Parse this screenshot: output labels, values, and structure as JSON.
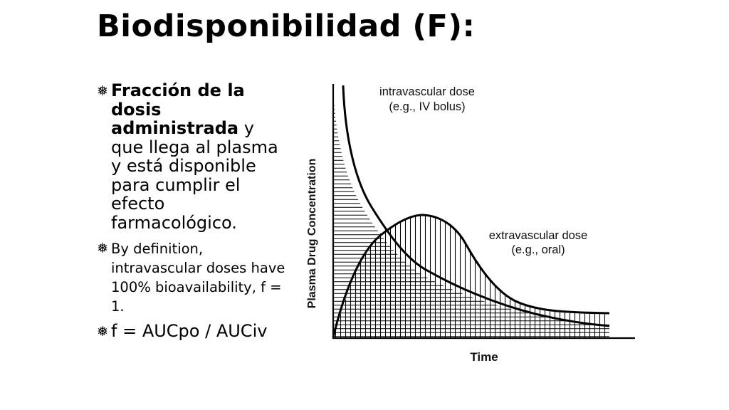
{
  "slide": {
    "title": "Biodisponibilidad (F):",
    "bullet_icon": "snowflake-bullet-icon",
    "bullets": [
      {
        "bold_text": "Fracción de la dosis administrada",
        "normal_text": " y que llega al plasma y está disponible para cumplir el efecto farmacológico."
      },
      {
        "text": "By definition, intravascular doses have 100% bioavailability, f = 1."
      },
      {
        "text": "f = AUCpo / AUCiv"
      }
    ]
  },
  "figure": {
    "y_axis_label": "Plasma Drug Concentration",
    "x_axis_label": "Time",
    "iv_label_line1": "intravascular dose",
    "iv_label_line2": "(e.g., IV bolus)",
    "oral_label_line1": "extravascular dose",
    "oral_label_line2": "(e.g., oral)"
  }
}
